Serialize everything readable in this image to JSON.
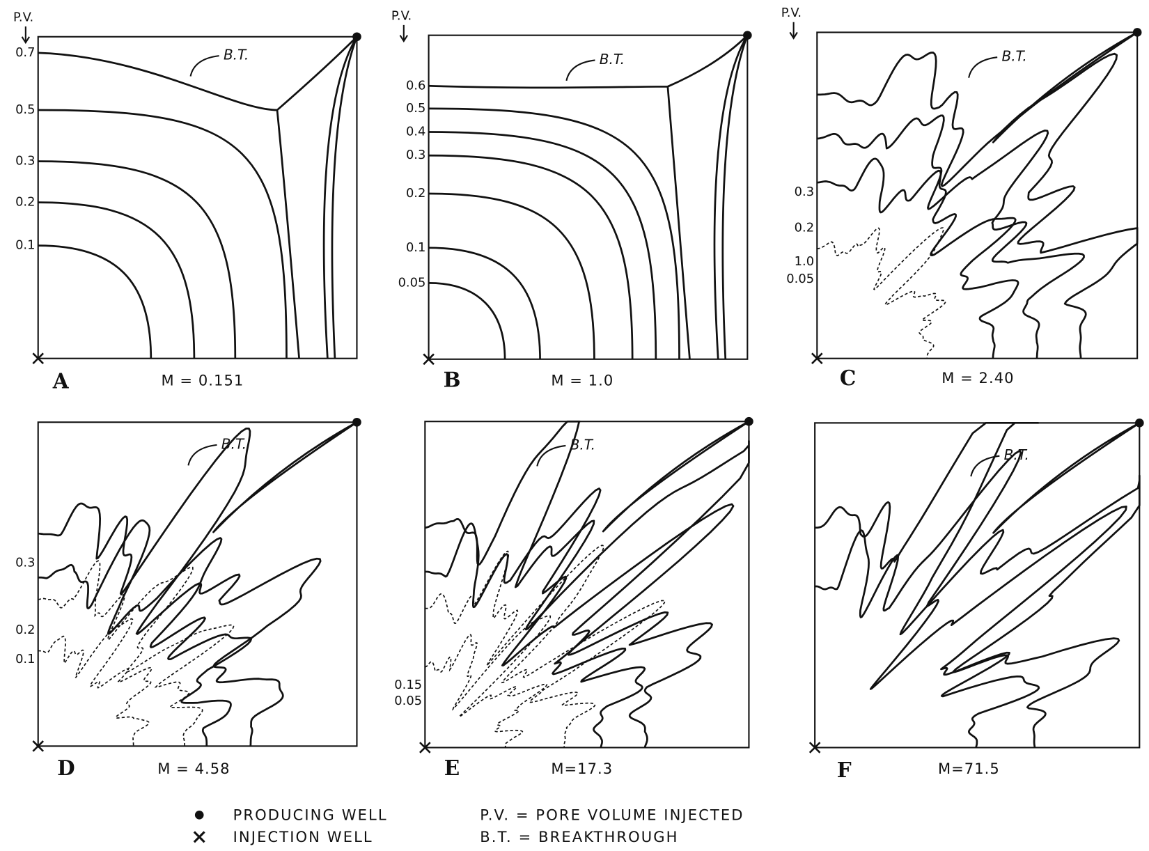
{
  "panels": [
    {
      "letter": "A",
      "mobility": "M = 0.151",
      "pv_header": "P.V.",
      "breakthrough": "B.T.",
      "contour_labels": [
        "0.7",
        "0.5",
        "0.3",
        "0.2",
        "0.1"
      ]
    },
    {
      "letter": "B",
      "mobility": "M = 1.0",
      "pv_header": "P.V.",
      "breakthrough": "B.T.",
      "contour_labels": [
        "0.6",
        "0.5",
        "0.4",
        "0.3",
        "0.2",
        "0.1",
        "0.05"
      ]
    },
    {
      "letter": "C",
      "mobility": "M = 2.40",
      "pv_header": "P.V.",
      "breakthrough": "B.T.",
      "contour_labels": [
        "0.3",
        "0.2",
        "1.0",
        "0.05"
      ]
    },
    {
      "letter": "D",
      "mobility": "M = 4.58",
      "breakthrough": "B.T.",
      "contour_labels": [
        "0.3",
        "0.2",
        "0.1"
      ]
    },
    {
      "letter": "E",
      "mobility": "M=17.3",
      "breakthrough": "B.T.",
      "contour_labels": [
        "0.15",
        "0.05"
      ]
    },
    {
      "letter": "F",
      "mobility": "M=71.5",
      "breakthrough": "B.T.",
      "contour_labels": []
    }
  ],
  "legend": {
    "producing_well": "PRODUCING WELL",
    "injection_well": "INJECTION WELL",
    "pv_definition": "P.V. = PORE VOLUME INJECTED",
    "bt_definition": "B.T. = BREAKTHROUGH"
  }
}
